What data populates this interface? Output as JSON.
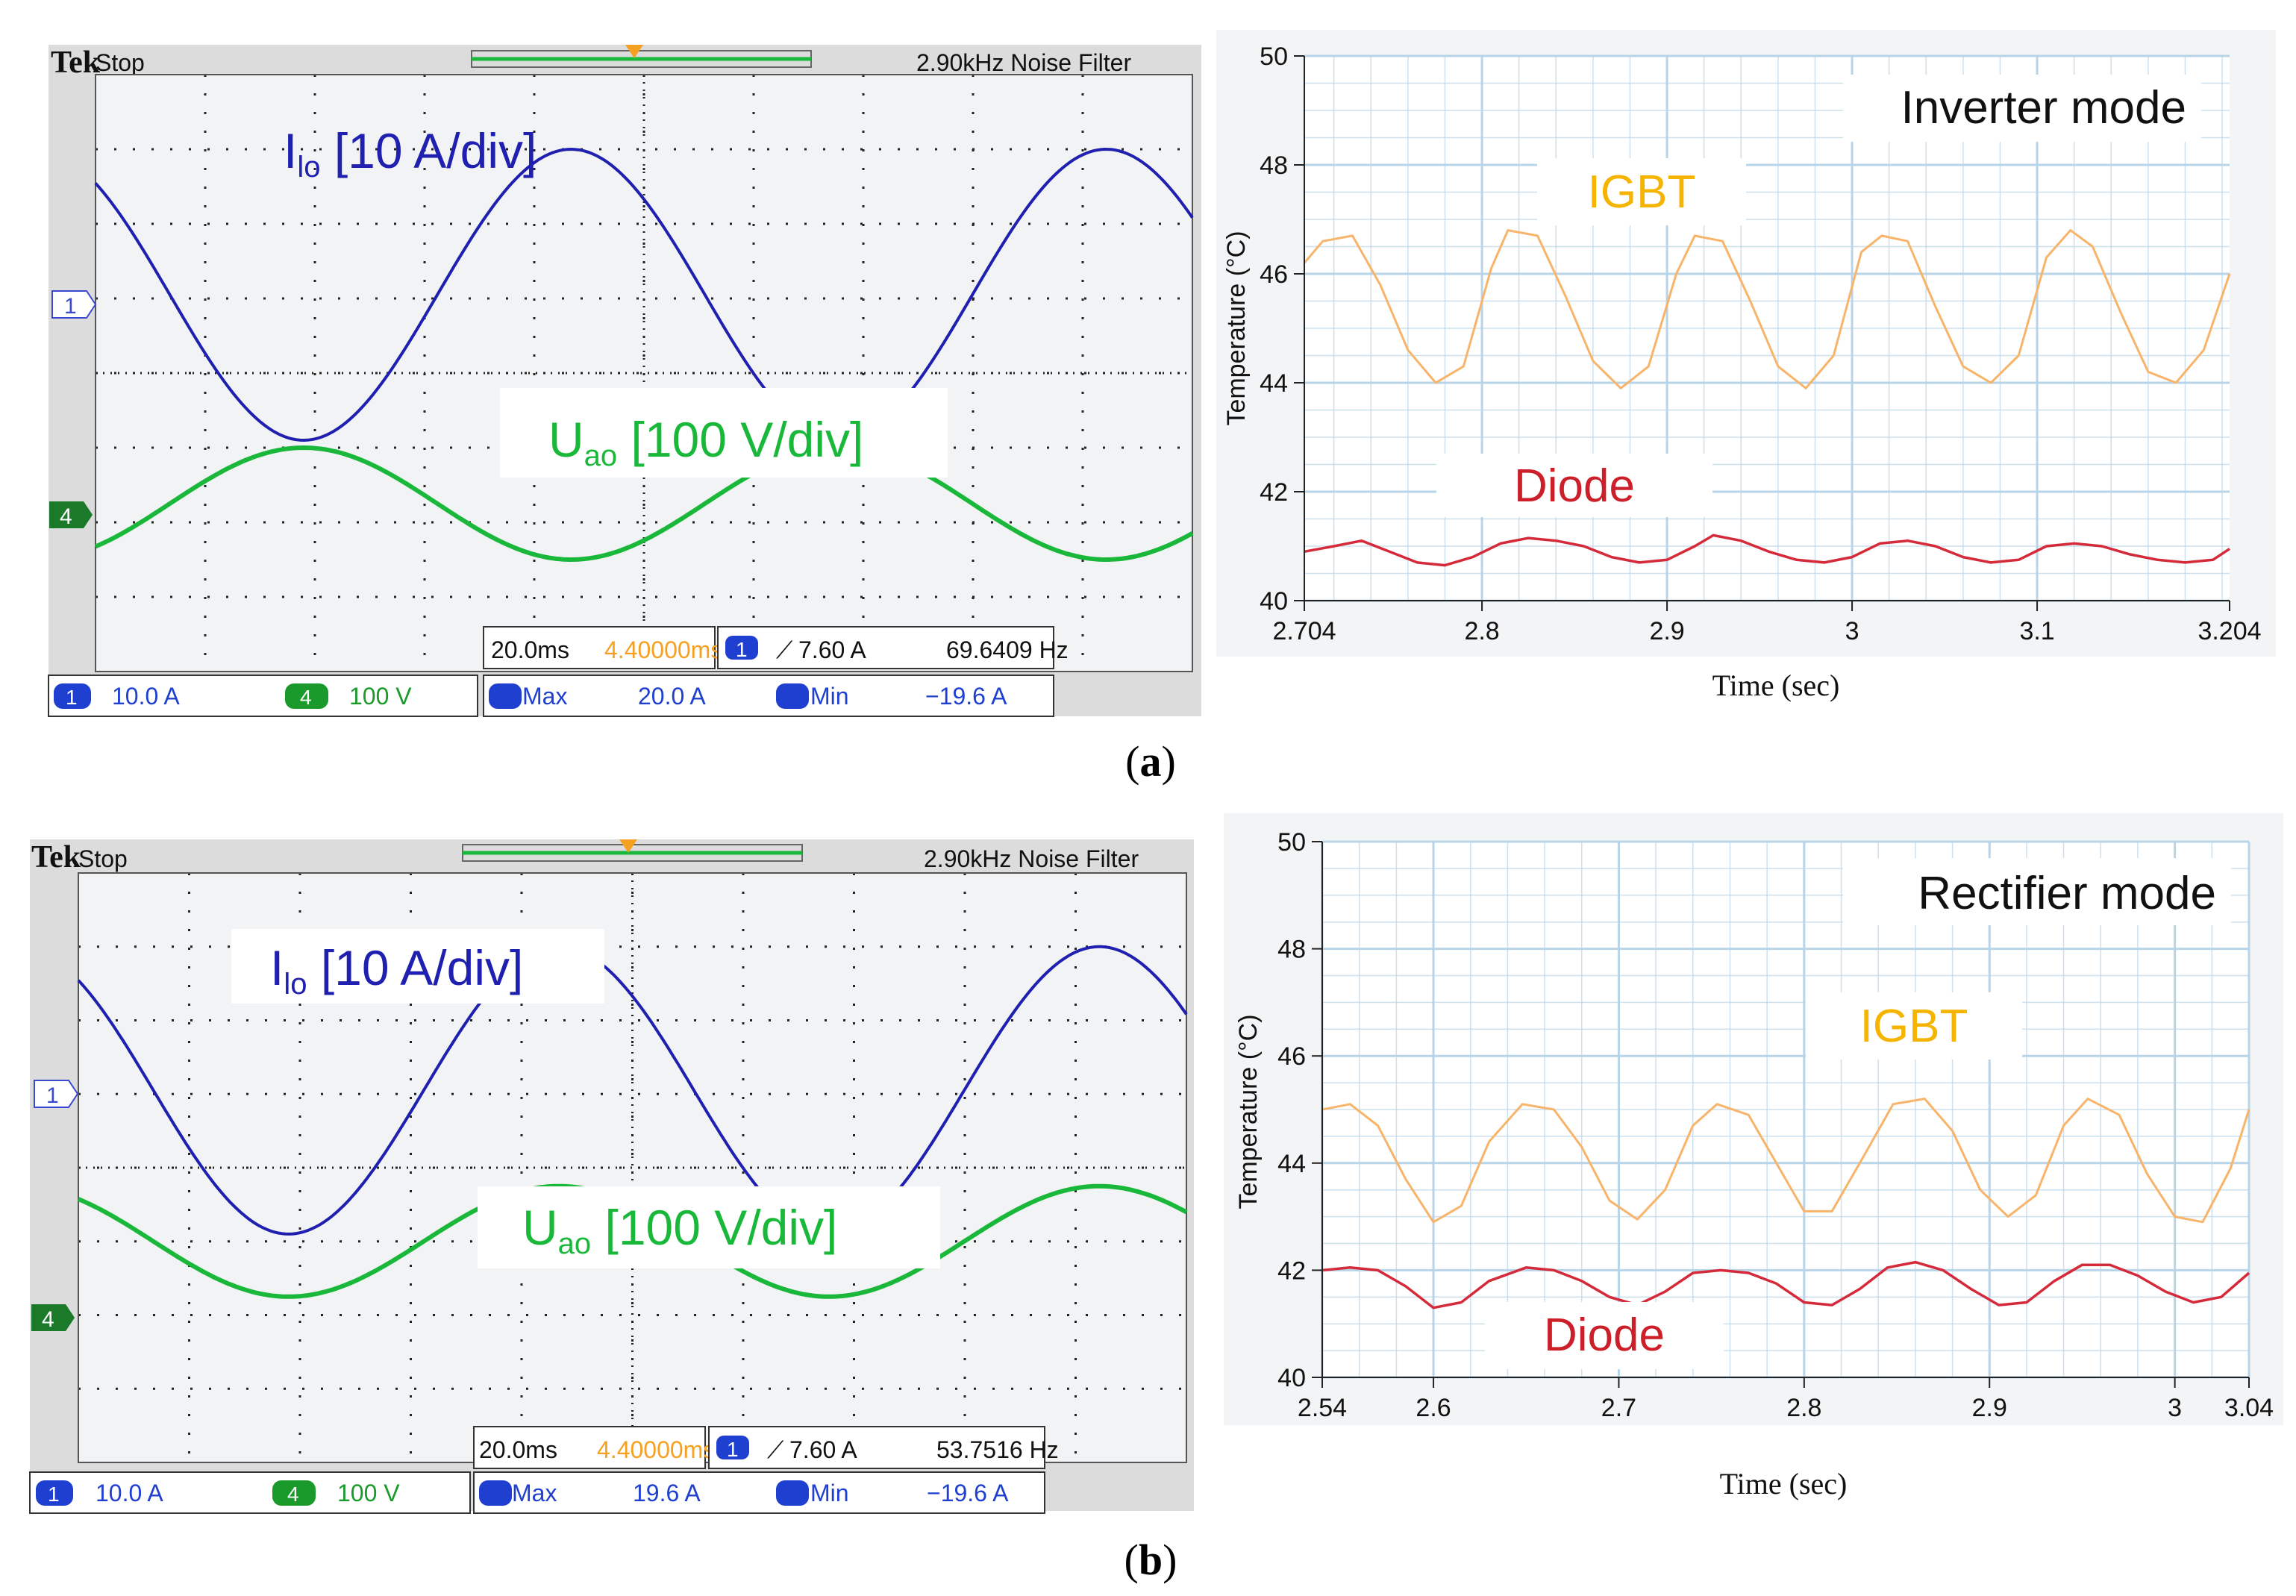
{
  "figure": {
    "captions": [
      {
        "open": "(",
        "letter": "a",
        "close": ")"
      },
      {
        "open": "(",
        "letter": "b",
        "close": ")"
      }
    ]
  },
  "colors": {
    "current": "#1f1fb0",
    "voltage": "#1ab83a",
    "igbt": "#f7b46a",
    "diode": "#d42a3a",
    "igbt_label": "#f5b400",
    "diode_label": "#cc1f2a",
    "scope_bg": "#f2f3f4",
    "scope_grid": "#222222",
    "thermal_bg": "#f3f4f5",
    "thermal_grid": "#b8d4e8"
  },
  "panels": [
    {
      "scope": {
        "brand": "Tek",
        "state": "Stop",
        "header_right": "2.90kHz  Noise Filter",
        "current_label_main": "I",
        "current_label_sub": "lo",
        "current_label_rest": " [10 A/div]",
        "voltage_label_main": "U",
        "voltage_label_sub": "ao",
        "voltage_label_rest": " [100 V/div]",
        "ch1_marker": "1",
        "ch4_marker": "4",
        "timebase": "20.0ms",
        "delay": "4.40000ms",
        "trigger_ch": "1",
        "trigger_level": "7.60 A",
        "frequency": "69.6409 Hz",
        "ch1_scale": "10.0 A",
        "ch4_scale": "100 V",
        "max_label": "Max",
        "max_value": "20.0 A",
        "min_label": "Min",
        "min_value": "−19.6 A",
        "ch1_badge": "1",
        "ch4_badge": "4",
        "current_wave": {
          "cycles": 2.05,
          "phase_deg": 130,
          "amplitude_div": 1.95,
          "offset_div": 1.05
        },
        "voltage_wave": {
          "cycles": 2.05,
          "phase_deg": 310,
          "amplitude_div": 0.75,
          "offset_div": -1.75
        }
      },
      "thermal": {
        "mode": "Inverter mode",
        "igbt_label": "IGBT",
        "diode_label": "Diode",
        "xlabel": "Time (sec)",
        "ylabel": "Temperature (°C)"
      },
      "chart_data": {
        "type": "line",
        "title": "Inverter mode",
        "xlabel": "Time (sec)",
        "ylabel": "Temperature (°C)",
        "xlim": [
          2.704,
          3.204
        ],
        "ylim": [
          40,
          50
        ],
        "xticks": [
          2.704,
          2.8,
          2.9,
          3.0,
          3.1,
          3.204
        ],
        "xtick_labels": [
          "2.704",
          "2.8",
          "2.9",
          "3",
          "3.1",
          "3.204"
        ],
        "yticks": [
          40,
          42,
          44,
          46,
          48,
          50
        ],
        "ytick_labels": [
          "40",
          "42",
          "44",
          "46",
          "48",
          "50"
        ],
        "series": [
          {
            "name": "IGBT",
            "x": [
              2.704,
              2.714,
              2.73,
              2.745,
              2.76,
              2.775,
              2.79,
              2.805,
              2.814,
              2.83,
              2.845,
              2.86,
              2.875,
              2.89,
              2.905,
              2.915,
              2.93,
              2.945,
              2.96,
              2.975,
              2.99,
              3.005,
              3.016,
              3.03,
              3.045,
              3.06,
              3.075,
              3.09,
              3.105,
              3.118,
              3.13,
              3.145,
              3.16,
              3.175,
              3.19,
              3.204
            ],
            "y": [
              46.2,
              46.6,
              46.7,
              45.8,
              44.6,
              44.0,
              44.3,
              46.1,
              46.8,
              46.7,
              45.6,
              44.4,
              43.9,
              44.3,
              46.0,
              46.7,
              46.6,
              45.5,
              44.3,
              43.9,
              44.5,
              46.4,
              46.7,
              46.6,
              45.4,
              44.3,
              44.0,
              44.5,
              46.3,
              46.8,
              46.5,
              45.3,
              44.2,
              44.0,
              44.6,
              46.0
            ]
          },
          {
            "name": "Diode",
            "x": [
              2.704,
              2.72,
              2.735,
              2.75,
              2.765,
              2.78,
              2.795,
              2.81,
              2.825,
              2.84,
              2.855,
              2.87,
              2.885,
              2.9,
              2.915,
              2.925,
              2.94,
              2.955,
              2.97,
              2.985,
              3.0,
              3.015,
              3.03,
              3.045,
              3.06,
              3.075,
              3.09,
              3.105,
              3.12,
              3.135,
              3.15,
              3.165,
              3.18,
              3.195,
              3.204
            ],
            "y": [
              40.9,
              41.0,
              41.1,
              40.9,
              40.7,
              40.65,
              40.8,
              41.05,
              41.15,
              41.1,
              41.0,
              40.8,
              40.7,
              40.75,
              41.0,
              41.2,
              41.1,
              40.9,
              40.75,
              40.7,
              40.8,
              41.05,
              41.1,
              41.0,
              40.8,
              40.7,
              40.75,
              41.0,
              41.05,
              41.0,
              40.85,
              40.75,
              40.7,
              40.75,
              40.95
            ]
          }
        ]
      }
    },
    {
      "scope": {
        "brand": "Tek",
        "state": "Stop",
        "header_right": "2.90kHz  Noise Filter",
        "current_label_main": "I",
        "current_label_sub": "lo",
        "current_label_rest": " [10 A/div]",
        "voltage_label_main": "U",
        "voltage_label_sub": "ao",
        "voltage_label_rest": " [100 V/div]",
        "ch1_marker": "1",
        "ch4_marker": "4",
        "timebase": "20.0ms",
        "delay": "4.40000ms",
        "trigger_ch": "1",
        "trigger_level": "7.60 A",
        "frequency": "53.7516 Hz",
        "ch1_scale": "10.0 A",
        "ch4_scale": "100 V",
        "max_label": "Max",
        "max_value": "19.6 A",
        "min_label": "Min",
        "min_value": "−19.6 A",
        "ch1_badge": "1",
        "ch4_badge": "4",
        "current_wave": {
          "cycles": 2.05,
          "phase_deg": 130,
          "amplitude_div": 1.95,
          "offset_div": 1.05
        },
        "voltage_wave": {
          "cycles": 2.05,
          "phase_deg": 130,
          "amplitude_div": 0.75,
          "offset_div": -1.0
        }
      },
      "thermal": {
        "mode": "Rectifier mode",
        "igbt_label": "IGBT",
        "diode_label": "Diode",
        "xlabel": "Time (sec)",
        "ylabel": "Temperature (°C)"
      },
      "chart_data": {
        "type": "line",
        "title": "Rectifier mode",
        "xlabel": "Time (sec)",
        "ylabel": "Temperature (°C)",
        "xlim": [
          2.54,
          3.04
        ],
        "ylim": [
          40,
          50
        ],
        "xticks": [
          2.54,
          2.6,
          2.7,
          2.8,
          2.9,
          3.0,
          3.04
        ],
        "xtick_labels": [
          "2.54",
          "2.6",
          "2.7",
          "2.8",
          "2.9",
          "3",
          "3.04"
        ],
        "yticks": [
          40,
          42,
          44,
          46,
          48,
          50
        ],
        "ytick_labels": [
          "40",
          "42",
          "44",
          "46",
          "48",
          "50"
        ],
        "series": [
          {
            "name": "IGBT",
            "x": [
              2.54,
              2.555,
              2.57,
              2.585,
              2.6,
              2.615,
              2.63,
              2.648,
              2.665,
              2.68,
              2.695,
              2.71,
              2.725,
              2.74,
              2.753,
              2.77,
              2.785,
              2.8,
              2.815,
              2.83,
              2.848,
              2.865,
              2.88,
              2.895,
              2.91,
              2.925,
              2.94,
              2.953,
              2.97,
              2.985,
              3.0,
              3.015,
              3.03,
              3.04
            ],
            "y": [
              45.0,
              45.1,
              44.7,
              43.7,
              42.9,
              43.2,
              44.4,
              45.1,
              45.0,
              44.3,
              43.3,
              42.95,
              43.5,
              44.7,
              45.1,
              44.9,
              44.0,
              43.1,
              43.1,
              44.0,
              45.1,
              45.2,
              44.6,
              43.5,
              43.0,
              43.4,
              44.7,
              45.2,
              44.9,
              43.8,
              43.0,
              42.9,
              43.9,
              45.0
            ]
          },
          {
            "name": "Diode",
            "x": [
              2.54,
              2.555,
              2.57,
              2.585,
              2.6,
              2.615,
              2.63,
              2.65,
              2.665,
              2.68,
              2.695,
              2.71,
              2.725,
              2.74,
              2.755,
              2.77,
              2.785,
              2.8,
              2.815,
              2.83,
              2.845,
              2.86,
              2.875,
              2.89,
              2.905,
              2.92,
              2.935,
              2.95,
              2.965,
              2.98,
              2.995,
              3.01,
              3.025,
              3.04
            ],
            "y": [
              42.0,
              42.05,
              42.0,
              41.7,
              41.3,
              41.4,
              41.8,
              42.05,
              42.0,
              41.8,
              41.5,
              41.35,
              41.6,
              41.95,
              42.0,
              41.95,
              41.75,
              41.4,
              41.35,
              41.65,
              42.05,
              42.15,
              42.0,
              41.65,
              41.35,
              41.4,
              41.8,
              42.1,
              42.1,
              41.9,
              41.6,
              41.4,
              41.5,
              41.95
            ]
          }
        ]
      }
    }
  ]
}
